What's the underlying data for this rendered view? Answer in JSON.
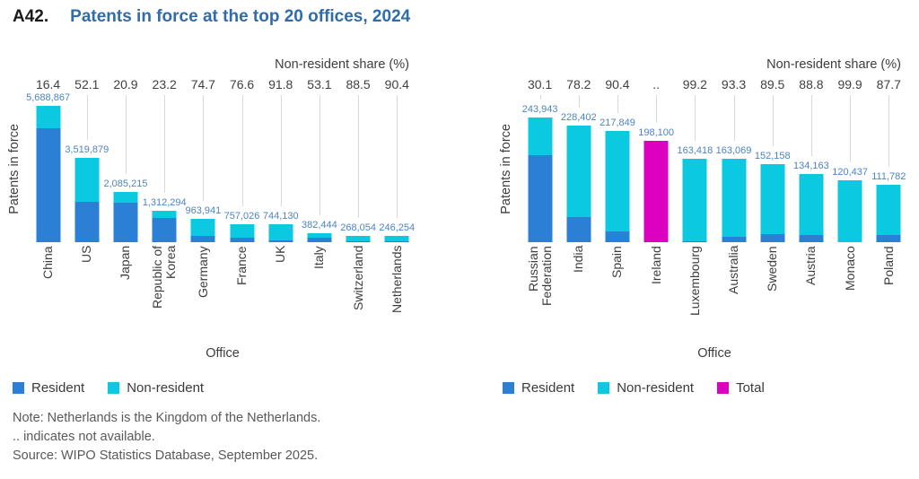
{
  "title": {
    "prefix": "A42.",
    "text": "Patents in force at the top 20 offices, 2024"
  },
  "notes": [
    "Note: Netherlands is the Kingdom of the Netherlands.",
    ".. indicates not available.",
    "Source: WIPO Statistics Database, September 2025."
  ],
  "colors": {
    "resident": "#2b7fd4",
    "non_resident": "#0cc9e2",
    "total": "#dc00c0",
    "title_accent": "#2f6cab",
    "value_label": "#4d84c2",
    "leader_line": "#d9d9d9",
    "axis_text": "#3d3d3d",
    "note_text": "#595959"
  },
  "chart_data": [
    {
      "type": "bar",
      "stacked": true,
      "title": "Patents in force at the top 20 offices, 2024 (offices 1-10)",
      "header": "Non-resident share (%)",
      "xlabel": "Office",
      "ylabel": "Patents in force",
      "categories": [
        "China",
        "US",
        "Japan",
        "Republic of Korea",
        "Germany",
        "France",
        "UK",
        "Italy",
        "Switzerland",
        "Netherlands"
      ],
      "totals": [
        5688867,
        3519879,
        2085215,
        1312294,
        963941,
        757026,
        744130,
        382444,
        268054,
        246254
      ],
      "total_labels": [
        "5,688,867",
        "3,519,879",
        "2,085,215",
        "1,312,294",
        "963,941",
        "757,026",
        "744,130",
        "382,444",
        "268,054",
        "246,254"
      ],
      "non_resident_share_pct": [
        16.4,
        52.1,
        20.9,
        23.2,
        74.7,
        76.6,
        91.8,
        53.1,
        88.5,
        90.4
      ],
      "share_labels": [
        "16.4",
        "52.1",
        "20.9",
        "23.2",
        "74.7",
        "76.6",
        "91.8",
        "53.1",
        "88.5",
        "90.4"
      ],
      "bar_styles": [
        "stacked",
        "stacked",
        "stacked",
        "stacked",
        "stacked",
        "stacked",
        "stacked",
        "stacked",
        "stacked",
        "stacked"
      ],
      "legend": [
        {
          "label": "Resident",
          "color_key": "resident"
        },
        {
          "label": "Non-resident",
          "color_key": "non_resident"
        }
      ],
      "ylim": [
        0,
        5688867
      ],
      "grid": false,
      "legend_position": "bottom-left"
    },
    {
      "type": "bar",
      "stacked": true,
      "title": "Patents in force at the top 20 offices, 2024 (offices 11-20)",
      "header": "Non-resident share (%)",
      "xlabel": "Office",
      "ylabel": "Patents in force",
      "categories": [
        "Russian Federation",
        "India",
        "Spain",
        "Ireland",
        "Luxembourg",
        "Australia",
        "Sweden",
        "Austria",
        "Monaco",
        "Poland"
      ],
      "totals": [
        243943,
        228402,
        217849,
        198100,
        163418,
        163069,
        152158,
        134163,
        120437,
        111782
      ],
      "total_labels": [
        "243,943",
        "228,402",
        "217,849",
        "198,100",
        "163,418",
        "163,069",
        "152,158",
        "134,163",
        "120,437",
        "111,782"
      ],
      "non_resident_share_pct": [
        30.1,
        78.2,
        90.4,
        null,
        99.2,
        93.3,
        89.5,
        88.8,
        99.9,
        87.7
      ],
      "share_labels": [
        "30.1",
        "78.2",
        "90.4",
        "..",
        "99.2",
        "93.3",
        "89.5",
        "88.8",
        "99.9",
        "87.7"
      ],
      "bar_styles": [
        "stacked",
        "stacked",
        "stacked",
        "total",
        "stacked",
        "stacked",
        "stacked",
        "stacked",
        "stacked",
        "stacked"
      ],
      "legend": [
        {
          "label": "Resident",
          "color_key": "resident"
        },
        {
          "label": "Non-resident",
          "color_key": "non_resident"
        },
        {
          "label": "Total",
          "color_key": "total"
        }
      ],
      "ylim": [
        0,
        243943
      ],
      "grid": false,
      "legend_position": "bottom-left"
    }
  ]
}
